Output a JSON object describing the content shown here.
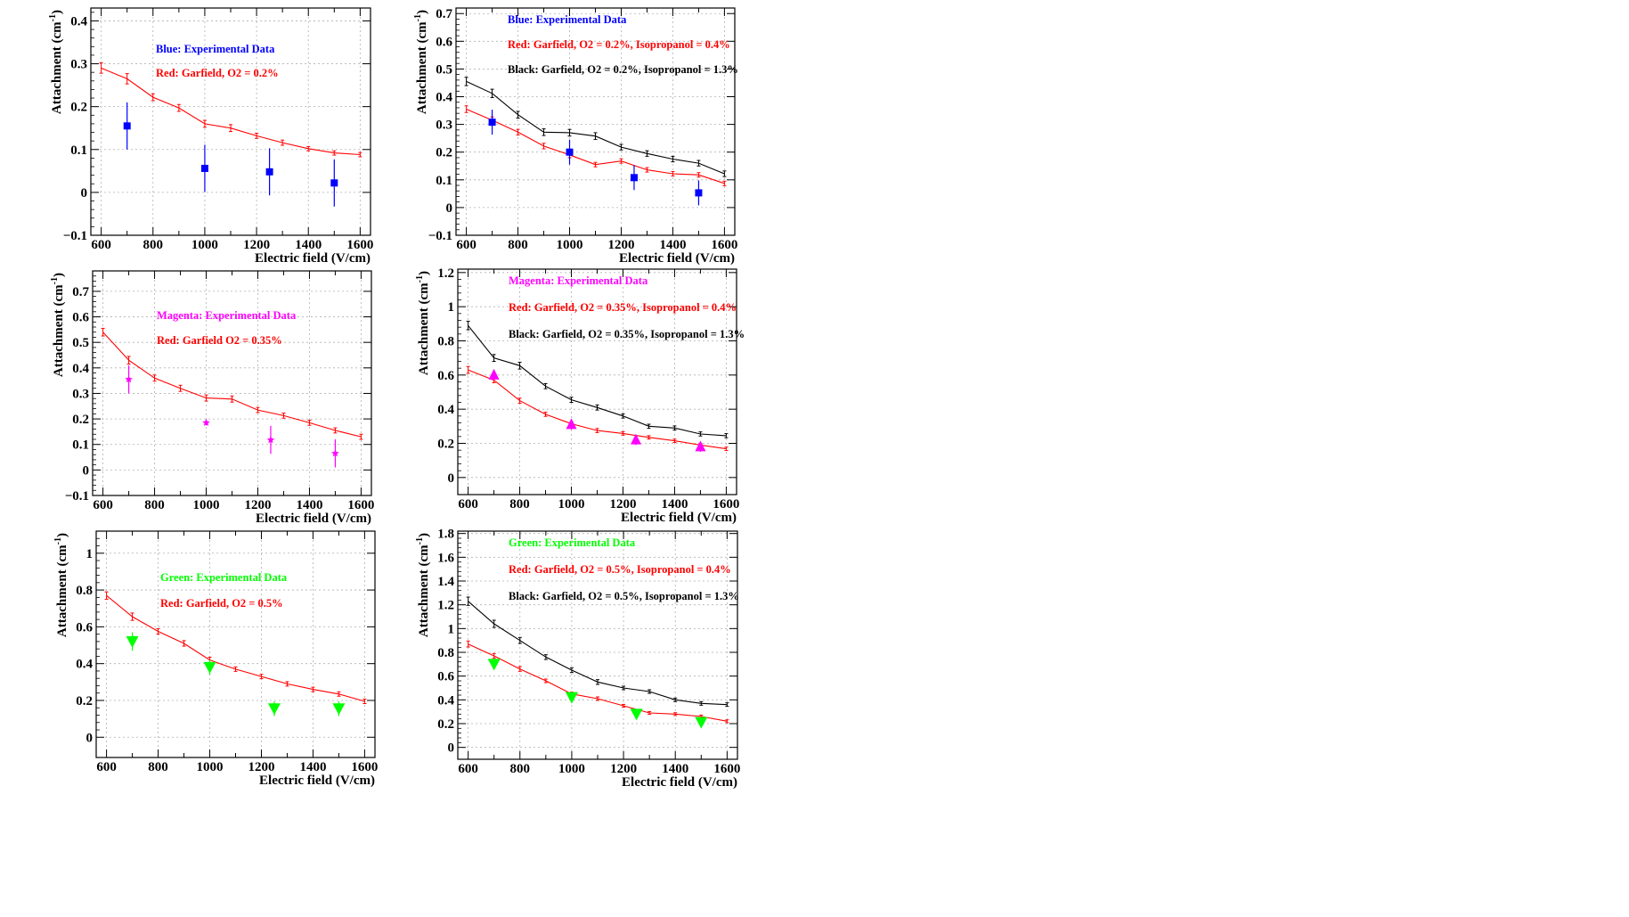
{
  "page": {
    "background": "#ffffff"
  },
  "colors": {
    "blue": "#0000ff",
    "red": "#ff0000",
    "black": "#000000",
    "magenta": "#ff00ff",
    "green": "#00ff00",
    "grid": "#b0b0b0"
  },
  "chart_data": [
    {
      "id": "blue-left",
      "type": "scatter",
      "xlabel": "Electric field (V/cm)",
      "ylabel": "Attachment (cm",
      "ylabel_sup": "-1",
      "ylabel_close": ")",
      "xlim": [
        560,
        1640
      ],
      "ylim": [
        -0.1,
        0.43
      ],
      "xticks": [
        600,
        800,
        1000,
        1200,
        1400,
        1600
      ],
      "xtick_labels": [
        "600",
        "800",
        "1000",
        "1200",
        "1400",
        "1600"
      ],
      "yticks": [
        -0.1,
        0,
        0.1,
        0.2,
        0.3,
        0.4
      ],
      "ytick_labels": [
        "−0.1",
        "0",
        "0.1",
        "0.2",
        "0.3",
        "0.4"
      ],
      "legend": [
        {
          "text": "Blue: Experimental Data",
          "color": "#0000ff"
        },
        {
          "text": "Red: Garfield, O2 = 0.2%",
          "color": "#ff0000"
        }
      ],
      "series": [
        {
          "name": "Garfield O2 = 0.2%",
          "color": "#ff0000",
          "style": "line",
          "x": [
            600,
            700,
            800,
            900,
            1000,
            1100,
            1200,
            1300,
            1400,
            1500,
            1600
          ],
          "y": [
            0.29,
            0.265,
            0.222,
            0.197,
            0.16,
            0.15,
            0.132,
            0.116,
            0.102,
            0.092,
            0.088
          ],
          "err": [
            0.012,
            0.012,
            0.008,
            0.008,
            0.008,
            0.008,
            0.006,
            0.006,
            0.005,
            0.005,
            0.005
          ]
        },
        {
          "name": "Experimental Data",
          "color": "#0000ff",
          "style": "marker",
          "marker": "square",
          "x": [
            700,
            1000,
            1250,
            1500
          ],
          "y": [
            0.155,
            0.056,
            0.048,
            0.022
          ],
          "err": [
            0.055,
            0.055,
            0.055,
            0.055
          ]
        }
      ]
    },
    {
      "id": "blue-right",
      "type": "scatter",
      "xlabel": "Electric field (V/cm)",
      "ylabel": "Attachment (cm",
      "ylabel_sup": "-1",
      "ylabel_close": ")",
      "xlim": [
        560,
        1640
      ],
      "ylim": [
        -0.1,
        0.72
      ],
      "xticks": [
        600,
        800,
        1000,
        1200,
        1400,
        1600
      ],
      "xtick_labels": [
        "600",
        "800",
        "1000",
        "1200",
        "1400",
        "1600"
      ],
      "yticks": [
        -0.1,
        0,
        0.1,
        0.2,
        0.3,
        0.4,
        0.5,
        0.6,
        0.7
      ],
      "ytick_labels": [
        "−0.1",
        "0",
        "0.1",
        "0.2",
        "0.3",
        "0.4",
        "0.5",
        "0.6",
        "0.7"
      ],
      "legend": [
        {
          "text": "Blue: Experimental Data",
          "color": "#0000ff"
        },
        {
          "text": "Red: Garfield, O2 = 0.2%, Isopropanol = 0.4%",
          "color": "#ff0000"
        },
        {
          "text": "Black: Garfield, O2 = 0.2%, Isopropanol = 1.3%",
          "color": "#000000"
        }
      ],
      "series": [
        {
          "name": "Garfield Isopropanol = 1.3%",
          "color": "#000000",
          "style": "line",
          "x": [
            600,
            700,
            800,
            900,
            1000,
            1100,
            1200,
            1300,
            1400,
            1500,
            1600
          ],
          "y": [
            0.455,
            0.412,
            0.335,
            0.272,
            0.27,
            0.258,
            0.218,
            0.195,
            0.175,
            0.16,
            0.122
          ],
          "err": [
            0.015,
            0.015,
            0.012,
            0.012,
            0.012,
            0.012,
            0.01,
            0.01,
            0.01,
            0.01,
            0.01
          ]
        },
        {
          "name": "Garfield Isopropanol = 0.4%",
          "color": "#ff0000",
          "style": "line",
          "x": [
            600,
            700,
            800,
            900,
            1000,
            1100,
            1200,
            1300,
            1400,
            1500,
            1600
          ],
          "y": [
            0.355,
            0.315,
            0.272,
            0.222,
            0.19,
            0.155,
            0.168,
            0.136,
            0.122,
            0.118,
            0.087
          ],
          "err": [
            0.012,
            0.012,
            0.01,
            0.01,
            0.01,
            0.008,
            0.008,
            0.008,
            0.008,
            0.008,
            0.008
          ]
        },
        {
          "name": "Experimental Data",
          "color": "#0000ff",
          "style": "marker",
          "marker": "square",
          "x": [
            700,
            1000,
            1250,
            1500
          ],
          "y": [
            0.308,
            0.2,
            0.108,
            0.053
          ],
          "err": [
            0.045,
            0.045,
            0.045,
            0.045
          ]
        }
      ]
    },
    {
      "id": "magenta-left",
      "type": "scatter",
      "xlabel": "Electric field (V/cm)",
      "ylabel": "Attachment (cm",
      "ylabel_sup": "-1",
      "ylabel_close": ")",
      "xlim": [
        560,
        1640
      ],
      "ylim": [
        -0.1,
        0.78
      ],
      "xticks": [
        600,
        800,
        1000,
        1200,
        1400,
        1600
      ],
      "xtick_labels": [
        "600",
        "800",
        "1000",
        "1200",
        "1400",
        "1600"
      ],
      "yticks": [
        -0.1,
        0,
        0.1,
        0.2,
        0.3,
        0.4,
        0.5,
        0.6,
        0.7
      ],
      "ytick_labels": [
        "−0.1",
        "0",
        "0.1",
        "0.2",
        "0.3",
        "0.4",
        "0.5",
        "0.6",
        "0.7"
      ],
      "legend": [
        {
          "text": "Magenta: Experimental Data",
          "color": "#ff00ff"
        },
        {
          "text": "Red: Garfield O2 = 0.35%",
          "color": "#ff0000"
        }
      ],
      "series": [
        {
          "name": "Garfield O2 = 0.35%",
          "color": "#ff0000",
          "style": "line",
          "x": [
            600,
            700,
            800,
            900,
            1000,
            1100,
            1200,
            1300,
            1400,
            1500,
            1600
          ],
          "y": [
            0.54,
            0.43,
            0.36,
            0.32,
            0.282,
            0.278,
            0.235,
            0.213,
            0.185,
            0.155,
            0.13
          ],
          "err": [
            0.015,
            0.015,
            0.012,
            0.012,
            0.012,
            0.012,
            0.01,
            0.01,
            0.01,
            0.01,
            0.01
          ]
        },
        {
          "name": "Experimental Data",
          "color": "#ff00ff",
          "style": "marker",
          "marker": "star",
          "x": [
            700,
            1000,
            1250,
            1500
          ],
          "y": [
            0.355,
            0.185,
            0.118,
            0.065
          ],
          "err": [
            0.055,
            0.01,
            0.055,
            0.055
          ]
        }
      ]
    },
    {
      "id": "magenta-right",
      "type": "scatter",
      "xlabel": "Electric field (V/cm)",
      "ylabel": "Attachment (cm",
      "ylabel_sup": "-1",
      "ylabel_close": ")",
      "xlim": [
        560,
        1640
      ],
      "ylim": [
        -0.1,
        1.22
      ],
      "xticks": [
        600,
        800,
        1000,
        1200,
        1400,
        1600
      ],
      "xtick_labels": [
        "600",
        "800",
        "1000",
        "1200",
        "1400",
        "1600"
      ],
      "yticks": [
        0,
        0.2,
        0.4,
        0.6,
        0.8,
        1,
        1.2
      ],
      "ytick_labels": [
        "0",
        "0.2",
        "0.4",
        "0.6",
        "0.8",
        "1",
        "1.2"
      ],
      "legend": [
        {
          "text": "Magenta: Experimental Data",
          "color": "#ff00ff"
        },
        {
          "text": "Red: Garfield, O2 = 0.35%, Isopropanol = 0.4%",
          "color": "#ff0000"
        },
        {
          "text": "Black: Garfield, O2 = 0.35%, Isopropanol = 1.3%",
          "color": "#000000"
        }
      ],
      "series": [
        {
          "name": "Garfield Isopropanol = 1.3%",
          "color": "#000000",
          "style": "line",
          "x": [
            600,
            700,
            800,
            900,
            1000,
            1100,
            1200,
            1300,
            1400,
            1500,
            1600
          ],
          "y": [
            0.89,
            0.7,
            0.655,
            0.535,
            0.455,
            0.41,
            0.36,
            0.3,
            0.29,
            0.255,
            0.245
          ],
          "err": [
            0.025,
            0.02,
            0.02,
            0.015,
            0.015,
            0.015,
            0.012,
            0.012,
            0.012,
            0.012,
            0.012
          ]
        },
        {
          "name": "Garfield Isopropanol = 0.4%",
          "color": "#ff0000",
          "style": "line",
          "x": [
            600,
            700,
            800,
            900,
            1000,
            1100,
            1200,
            1300,
            1400,
            1500,
            1600
          ],
          "y": [
            0.63,
            0.57,
            0.45,
            0.37,
            0.315,
            0.275,
            0.258,
            0.235,
            0.215,
            0.19,
            0.168
          ],
          "err": [
            0.02,
            0.015,
            0.015,
            0.012,
            0.012,
            0.012,
            0.01,
            0.01,
            0.01,
            0.01,
            0.01
          ]
        },
        {
          "name": "Experimental Data",
          "color": "#ff00ff",
          "style": "marker",
          "marker": "triangle-up",
          "x": [
            700,
            1000,
            1250,
            1500
          ],
          "y": [
            0.6,
            0.31,
            0.22,
            0.18
          ],
          "err": [
            0.03,
            0.03,
            0.03,
            0.03
          ]
        }
      ]
    },
    {
      "id": "green-left",
      "type": "scatter",
      "xlabel": "Electric field (V/cm)",
      "ylabel": "Attachment (cm",
      "ylabel_sup": "-1",
      "ylabel_close": ")",
      "xlim": [
        560,
        1640
      ],
      "ylim": [
        -0.11,
        1.12
      ],
      "xticks": [
        600,
        800,
        1000,
        1200,
        1400,
        1600
      ],
      "xtick_labels": [
        "600",
        "800",
        "1000",
        "1200",
        "1400",
        "1600"
      ],
      "yticks": [
        0,
        0.2,
        0.4,
        0.6,
        0.8,
        1
      ],
      "ytick_labels": [
        "0",
        "0.2",
        "0.4",
        "0.6",
        "0.8",
        "1"
      ],
      "legend": [
        {
          "text": "Green: Experimental Data",
          "color": "#00ff00"
        },
        {
          "text": "Red: Garfield, O2 = 0.5%",
          "color": "#ff0000"
        }
      ],
      "series": [
        {
          "name": "Garfield O2 = 0.5%",
          "color": "#ff0000",
          "style": "line",
          "x": [
            600,
            700,
            800,
            900,
            1000,
            1100,
            1200,
            1300,
            1400,
            1500,
            1600
          ],
          "y": [
            0.77,
            0.655,
            0.575,
            0.51,
            0.42,
            0.37,
            0.33,
            0.29,
            0.26,
            0.235,
            0.195
          ],
          "err": [
            0.02,
            0.02,
            0.015,
            0.015,
            0.015,
            0.012,
            0.012,
            0.012,
            0.012,
            0.012,
            0.012
          ]
        },
        {
          "name": "Experimental Data",
          "color": "#00ff00",
          "style": "marker",
          "marker": "triangle-down",
          "x": [
            700,
            1000,
            1250,
            1500
          ],
          "y": [
            0.52,
            0.38,
            0.155,
            0.155
          ],
          "err": [
            0.05,
            0.04,
            0.04,
            0.04
          ]
        }
      ]
    },
    {
      "id": "green-right",
      "type": "scatter",
      "xlabel": "Electric field (V/cm)",
      "ylabel": "Attachment (cm",
      "ylabel_sup": "-1",
      "ylabel_close": ")",
      "xlim": [
        560,
        1640
      ],
      "ylim": [
        -0.1,
        1.82
      ],
      "xticks": [
        600,
        800,
        1000,
        1200,
        1400,
        1600
      ],
      "xtick_labels": [
        "600",
        "800",
        "1000",
        "1200",
        "1400",
        "1600"
      ],
      "yticks": [
        0,
        0.2,
        0.4,
        0.6,
        0.8,
        1,
        1.2,
        1.4,
        1.6,
        1.8
      ],
      "ytick_labels": [
        "0",
        "0.2",
        "0.4",
        "0.6",
        "0.8",
        "1",
        "1.2",
        "1.4",
        "1.6",
        "1.8"
      ],
      "legend": [
        {
          "text": "Green: Experimental Data",
          "color": "#00ff00"
        },
        {
          "text": "Red: Garfield, O2 = 0.5%, Isopropanol = 0.4%",
          "color": "#ff0000"
        },
        {
          "text": "Black: Garfield, O2 = 0.5%, Isopropanol = 1.3%",
          "color": "#000000"
        }
      ],
      "series": [
        {
          "name": "Garfield Isopropanol = 1.3%",
          "color": "#000000",
          "style": "line",
          "x": [
            600,
            700,
            800,
            900,
            1000,
            1100,
            1200,
            1300,
            1400,
            1500,
            1600
          ],
          "y": [
            1.23,
            1.04,
            0.9,
            0.76,
            0.65,
            0.55,
            0.5,
            0.47,
            0.4,
            0.37,
            0.36
          ],
          "err": [
            0.035,
            0.03,
            0.025,
            0.02,
            0.02,
            0.02,
            0.015,
            0.015,
            0.015,
            0.015,
            0.015
          ]
        },
        {
          "name": "Garfield Isopropanol = 0.4%",
          "color": "#ff0000",
          "style": "line",
          "x": [
            600,
            700,
            800,
            900,
            1000,
            1100,
            1200,
            1300,
            1400,
            1500,
            1600
          ],
          "y": [
            0.87,
            0.77,
            0.66,
            0.56,
            0.45,
            0.41,
            0.35,
            0.29,
            0.28,
            0.26,
            0.22
          ],
          "err": [
            0.025,
            0.02,
            0.02,
            0.015,
            0.015,
            0.015,
            0.012,
            0.012,
            0.012,
            0.012,
            0.012
          ]
        },
        {
          "name": "Experimental Data",
          "color": "#00ff00",
          "style": "marker",
          "marker": "triangle-down",
          "x": [
            700,
            1000,
            1250,
            1500
          ],
          "y": [
            0.7,
            0.42,
            0.28,
            0.21
          ],
          "err": [
            0.02,
            0.02,
            0.02,
            0.02
          ]
        }
      ]
    }
  ]
}
